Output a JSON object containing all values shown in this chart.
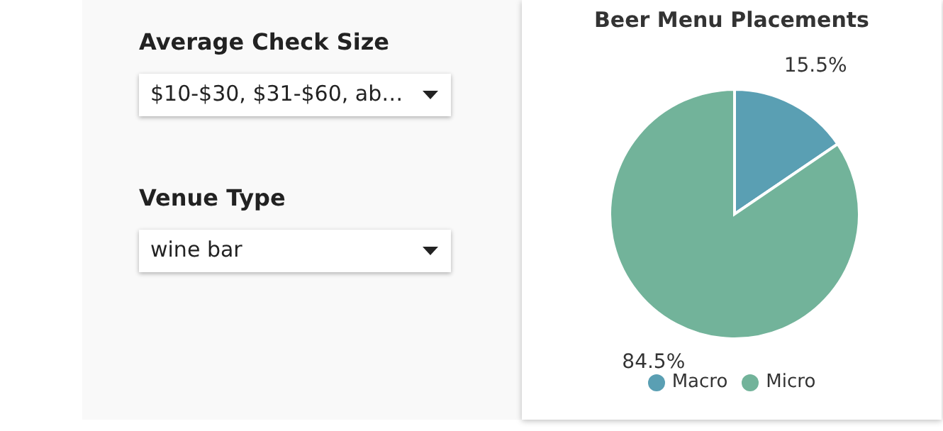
{
  "chart_data": [
    {
      "type": "other",
      "annotations": [
        "Average Check Size",
        "$10-$30, $31-$60, ab…",
        "Venue Type",
        "wine bar"
      ]
    },
    {
      "type": "pie",
      "title": "Beer Menu Placements",
      "categories": [
        "Macro",
        "Micro"
      ],
      "values": [
        15.5,
        84.5
      ],
      "colors": [
        "#5a9fb3",
        "#72b39a"
      ],
      "value_labels": [
        "15.5%",
        "84.5%"
      ],
      "legend": "bottom"
    }
  ]
}
